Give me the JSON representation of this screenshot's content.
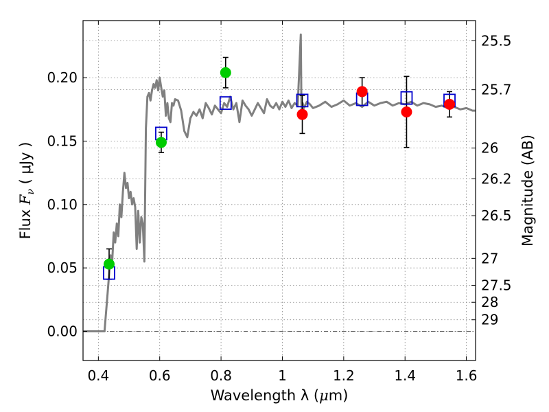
{
  "chart_data": {
    "type": "scatter",
    "xlabel_text": "Wavelength  λ (",
    "xlabel_unit": "μ",
    "xlabel_tail": "m)",
    "ylabel_left_prefix": "Flux ",
    "ylabel_left_symbol": "F",
    "ylabel_left_sub": "ν",
    "ylabel_left_suffix": " ( μJy )",
    "ylabel_right": "Magnitude (AB)",
    "xlim": [
      0.35,
      1.63
    ],
    "ylim": [
      -0.023,
      0.245
    ],
    "x_ticks": [
      0.4,
      0.6,
      0.8,
      1.0,
      1.2,
      1.4,
      1.6
    ],
    "x_tick_labels": [
      "0.4",
      "0.6",
      "0.8",
      "1",
      "1.2",
      "1.4",
      "1.6"
    ],
    "y_ticks": [
      0.0,
      0.05,
      0.1,
      0.15,
      0.2
    ],
    "y_tick_labels": [
      "0.00",
      "0.05",
      "0.10",
      "0.15",
      "0.20"
    ],
    "right_ticks": [
      {
        "label": "25.5",
        "flux": 0.2291
      },
      {
        "label": "25.7",
        "flux": 0.1905
      },
      {
        "label": "26",
        "flux": 0.1445
      },
      {
        "label": "26.2",
        "flux": 0.1202
      },
      {
        "label": "26.5",
        "flux": 0.0912
      },
      {
        "label": "27",
        "flux": 0.0575
      },
      {
        "label": "27.5",
        "flux": 0.0363
      },
      {
        "label": "28",
        "flux": 0.0229
      },
      {
        "label": "29",
        "flux": 0.0091
      }
    ],
    "grid": true,
    "model_spectrum": {
      "color": "#808080",
      "x": [
        0.35,
        0.42,
        0.43,
        0.44,
        0.445,
        0.45,
        0.455,
        0.46,
        0.465,
        0.47,
        0.475,
        0.48,
        0.485,
        0.49,
        0.495,
        0.5,
        0.505,
        0.51,
        0.515,
        0.52,
        0.525,
        0.53,
        0.535,
        0.54,
        0.545,
        0.55,
        0.555,
        0.56,
        0.565,
        0.57,
        0.575,
        0.58,
        0.585,
        0.59,
        0.595,
        0.6,
        0.605,
        0.61,
        0.615,
        0.62,
        0.625,
        0.63,
        0.635,
        0.64,
        0.645,
        0.65,
        0.66,
        0.67,
        0.68,
        0.69,
        0.7,
        0.71,
        0.72,
        0.73,
        0.74,
        0.75,
        0.76,
        0.77,
        0.78,
        0.79,
        0.8,
        0.81,
        0.82,
        0.83,
        0.84,
        0.85,
        0.86,
        0.87,
        0.88,
        0.89,
        0.9,
        0.91,
        0.92,
        0.93,
        0.94,
        0.95,
        0.96,
        0.97,
        0.98,
        0.99,
        1.0,
        1.01,
        1.02,
        1.03,
        1.04,
        1.05,
        1.055,
        1.06,
        1.062,
        1.064,
        1.066,
        1.07,
        1.08,
        1.09,
        1.1,
        1.12,
        1.14,
        1.16,
        1.18,
        1.2,
        1.22,
        1.24,
        1.26,
        1.28,
        1.3,
        1.32,
        1.34,
        1.36,
        1.38,
        1.4,
        1.42,
        1.44,
        1.46,
        1.48,
        1.5,
        1.52,
        1.54,
        1.56,
        1.58,
        1.6,
        1.62,
        1.63
      ],
      "y": [
        0.0,
        0.0,
        0.03,
        0.06,
        0.055,
        0.078,
        0.07,
        0.085,
        0.075,
        0.1,
        0.09,
        0.11,
        0.125,
        0.113,
        0.117,
        0.105,
        0.11,
        0.1,
        0.105,
        0.098,
        0.065,
        0.095,
        0.07,
        0.09,
        0.085,
        0.055,
        0.16,
        0.185,
        0.188,
        0.182,
        0.19,
        0.195,
        0.192,
        0.198,
        0.19,
        0.2,
        0.192,
        0.185,
        0.19,
        0.17,
        0.18,
        0.168,
        0.165,
        0.18,
        0.178,
        0.183,
        0.182,
        0.174,
        0.158,
        0.153,
        0.168,
        0.173,
        0.17,
        0.175,
        0.168,
        0.18,
        0.176,
        0.171,
        0.178,
        0.175,
        0.172,
        0.18,
        0.177,
        0.185,
        0.175,
        0.18,
        0.165,
        0.182,
        0.178,
        0.175,
        0.17,
        0.175,
        0.18,
        0.176,
        0.172,
        0.183,
        0.178,
        0.176,
        0.18,
        0.175,
        0.181,
        0.177,
        0.182,
        0.176,
        0.18,
        0.178,
        0.205,
        0.234,
        0.18,
        0.172,
        0.18,
        0.176,
        0.181,
        0.179,
        0.176,
        0.178,
        0.181,
        0.177,
        0.179,
        0.182,
        0.178,
        0.18,
        0.177,
        0.181,
        0.178,
        0.18,
        0.181,
        0.178,
        0.18,
        0.179,
        0.181,
        0.178,
        0.18,
        0.179,
        0.177,
        0.178,
        0.176,
        0.177,
        0.175,
        0.176,
        0.174,
        0.174
      ]
    },
    "model_photometry": {
      "marker": "open-square",
      "color": "#0000cc",
      "x": [
        0.435,
        0.605,
        0.815,
        1.065,
        1.26,
        1.405,
        1.545
      ],
      "y": [
        0.046,
        0.156,
        0.18,
        0.182,
        0.183,
        0.184,
        0.182
      ]
    },
    "observed_optical": {
      "marker": "filled-circle",
      "color": "#00cc00",
      "x": [
        0.435,
        0.605,
        0.815
      ],
      "y": [
        0.053,
        0.149,
        0.204
      ],
      "yerr_low": [
        0.012,
        0.008,
        0.012
      ],
      "yerr_high": [
        0.012,
        0.008,
        0.012
      ]
    },
    "observed_nir": {
      "marker": "filled-circle",
      "color": "#ff0000",
      "x": [
        1.065,
        1.26,
        1.405,
        1.545
      ],
      "y": [
        0.171,
        0.189,
        0.173,
        0.179
      ],
      "yerr_low": [
        0.015,
        0.011,
        0.028,
        0.01
      ],
      "yerr_high": [
        0.015,
        0.011,
        0.028,
        0.01
      ]
    }
  }
}
